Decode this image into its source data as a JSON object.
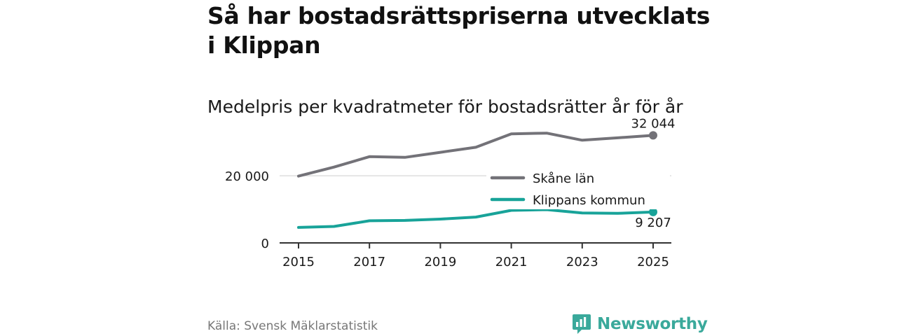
{
  "header": {
    "title": "Så har bostadsrättspriserna utvecklats i Klippan",
    "subtitle": "Medelpris per kvadratmeter för bostadsrätter år för år"
  },
  "footer": {
    "source": "Källa: Svensk Mäklarstatistik",
    "brand": "Newsworthy"
  },
  "colors": {
    "skane": "#737278",
    "klippan": "#18a399",
    "axis": "#333333",
    "grid": "#dddddd"
  },
  "chart_data": {
    "type": "line",
    "x": [
      2015,
      2016,
      2017,
      2018,
      2019,
      2020,
      2021,
      2022,
      2023,
      2024,
      2025
    ],
    "xticks": [
      2015,
      2017,
      2019,
      2021,
      2023,
      2025
    ],
    "xtick_labels": [
      "2015",
      "2017",
      "2019",
      "2021",
      "2023",
      "2025"
    ],
    "yticks": [
      0,
      20000
    ],
    "ytick_labels": [
      "0",
      "20 000"
    ],
    "ylim": [
      0,
      34000
    ],
    "grid": true,
    "legend_position": "right",
    "series": [
      {
        "name": "Skåne län",
        "key": "skane",
        "values": [
          19900,
          22600,
          25700,
          25500,
          27000,
          28500,
          32500,
          32700,
          30600,
          31300,
          32044
        ],
        "end_label": "32 044"
      },
      {
        "name": "Klippans kommun",
        "key": "klippan",
        "values": [
          4600,
          4900,
          6600,
          6700,
          7100,
          7700,
          9700,
          9900,
          8900,
          8800,
          9207
        ],
        "end_label": "9 207"
      }
    ]
  }
}
